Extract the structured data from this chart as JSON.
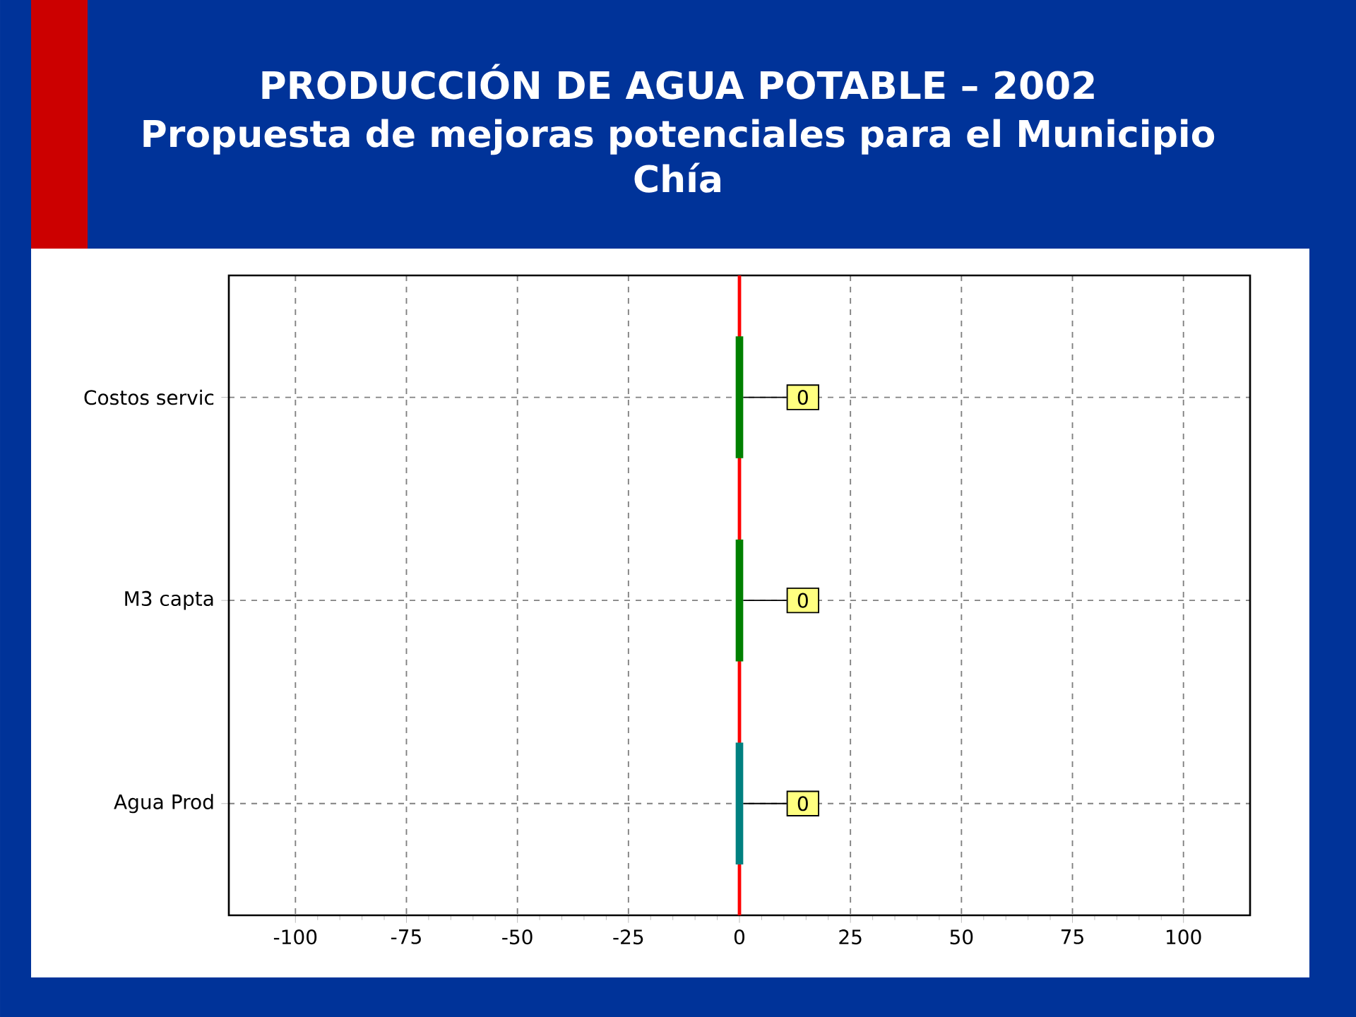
{
  "chart_data": {
    "type": "bar",
    "orientation": "horizontal",
    "title": "PRODUCCIÓN DE AGUA POTABLE – 2002",
    "subtitle": "Propuesta de mejoras potenciales para el Municipio Chía",
    "categories": [
      "Costos servic",
      "M3 capta",
      "Agua Prod"
    ],
    "values": [
      0,
      0,
      0
    ],
    "colors": [
      "#008000",
      "#008000",
      "#008080"
    ],
    "data_labels": true,
    "xlim": [
      -115,
      115
    ],
    "xticks": [
      -100,
      -75,
      -50,
      -25,
      0,
      25,
      50,
      75,
      100
    ],
    "grid": true,
    "ref_lines": [
      {
        "axis": "x",
        "value": 0,
        "color": "#ff0000"
      }
    ]
  }
}
